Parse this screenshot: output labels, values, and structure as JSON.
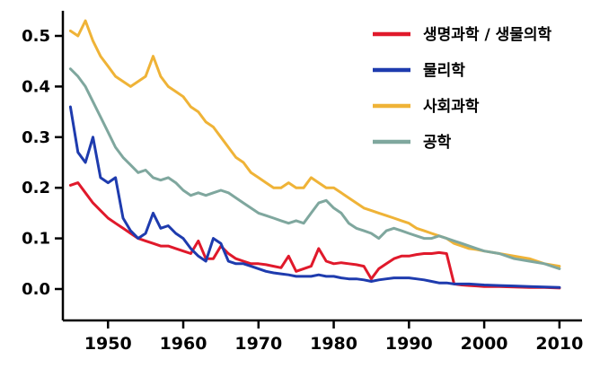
{
  "chart_data": {
    "type": "line",
    "title": "",
    "xlabel": "",
    "ylabel": "",
    "xlim": [
      1944,
      2013
    ],
    "ylim": [
      -0.06,
      0.55
    ],
    "xticks": [
      1950,
      1960,
      1970,
      1980,
      1990,
      2000,
      2010
    ],
    "yticks": [
      "0.0",
      "0.1",
      "0.2",
      "0.3",
      "0.4",
      "0.5"
    ],
    "ytick_values": [
      0.0,
      0.1,
      0.2,
      0.3,
      0.4,
      0.5
    ],
    "grid": false,
    "legend_position": "upper-right",
    "axis_color": "#000000",
    "background_color": "#ffffff",
    "series": [
      {
        "name": "생명과학 / 생물의학",
        "color": "#e0192b",
        "points": [
          [
            1945,
            0.205
          ],
          [
            1946,
            0.21
          ],
          [
            1947,
            0.19
          ],
          [
            1948,
            0.17
          ],
          [
            1949,
            0.155
          ],
          [
            1950,
            0.14
          ],
          [
            1951,
            0.13
          ],
          [
            1952,
            0.12
          ],
          [
            1953,
            0.11
          ],
          [
            1954,
            0.1
          ],
          [
            1955,
            0.095
          ],
          [
            1956,
            0.09
          ],
          [
            1957,
            0.085
          ],
          [
            1958,
            0.085
          ],
          [
            1959,
            0.08
          ],
          [
            1960,
            0.075
          ],
          [
            1961,
            0.07
          ],
          [
            1962,
            0.095
          ],
          [
            1963,
            0.06
          ],
          [
            1964,
            0.06
          ],
          [
            1965,
            0.085
          ],
          [
            1966,
            0.07
          ],
          [
            1967,
            0.06
          ],
          [
            1968,
            0.055
          ],
          [
            1969,
            0.05
          ],
          [
            1970,
            0.05
          ],
          [
            1971,
            0.048
          ],
          [
            1972,
            0.045
          ],
          [
            1973,
            0.042
          ],
          [
            1974,
            0.065
          ],
          [
            1975,
            0.035
          ],
          [
            1976,
            0.04
          ],
          [
            1977,
            0.045
          ],
          [
            1978,
            0.08
          ],
          [
            1979,
            0.055
          ],
          [
            1980,
            0.05
          ],
          [
            1981,
            0.052
          ],
          [
            1982,
            0.05
          ],
          [
            1983,
            0.048
          ],
          [
            1984,
            0.045
          ],
          [
            1985,
            0.02
          ],
          [
            1986,
            0.04
          ],
          [
            1987,
            0.05
          ],
          [
            1988,
            0.06
          ],
          [
            1989,
            0.065
          ],
          [
            1990,
            0.065
          ],
          [
            1991,
            0.068
          ],
          [
            1992,
            0.07
          ],
          [
            1993,
            0.07
          ],
          [
            1994,
            0.072
          ],
          [
            1995,
            0.07
          ],
          [
            1996,
            0.01
          ],
          [
            1997,
            0.008
          ],
          [
            1998,
            0.007
          ],
          [
            1999,
            0.006
          ],
          [
            2000,
            0.005
          ],
          [
            2002,
            0.005
          ],
          [
            2004,
            0.004
          ],
          [
            2006,
            0.003
          ],
          [
            2008,
            0.003
          ],
          [
            2010,
            0.002
          ]
        ]
      },
      {
        "name": "물리학",
        "color": "#1e3bae",
        "points": [
          [
            1945,
            0.36
          ],
          [
            1946,
            0.27
          ],
          [
            1947,
            0.25
          ],
          [
            1948,
            0.3
          ],
          [
            1949,
            0.22
          ],
          [
            1950,
            0.21
          ],
          [
            1951,
            0.22
          ],
          [
            1952,
            0.14
          ],
          [
            1953,
            0.115
          ],
          [
            1954,
            0.1
          ],
          [
            1955,
            0.11
          ],
          [
            1956,
            0.15
          ],
          [
            1957,
            0.12
          ],
          [
            1958,
            0.125
          ],
          [
            1959,
            0.11
          ],
          [
            1960,
            0.1
          ],
          [
            1961,
            0.08
          ],
          [
            1962,
            0.065
          ],
          [
            1963,
            0.055
          ],
          [
            1964,
            0.1
          ],
          [
            1965,
            0.09
          ],
          [
            1966,
            0.055
          ],
          [
            1967,
            0.05
          ],
          [
            1968,
            0.05
          ],
          [
            1969,
            0.045
          ],
          [
            1970,
            0.04
          ],
          [
            1971,
            0.035
          ],
          [
            1972,
            0.032
          ],
          [
            1973,
            0.03
          ],
          [
            1974,
            0.028
          ],
          [
            1975,
            0.025
          ],
          [
            1976,
            0.025
          ],
          [
            1977,
            0.025
          ],
          [
            1978,
            0.028
          ],
          [
            1979,
            0.025
          ],
          [
            1980,
            0.025
          ],
          [
            1981,
            0.022
          ],
          [
            1982,
            0.02
          ],
          [
            1983,
            0.02
          ],
          [
            1984,
            0.018
          ],
          [
            1985,
            0.015
          ],
          [
            1986,
            0.018
          ],
          [
            1987,
            0.02
          ],
          [
            1988,
            0.022
          ],
          [
            1989,
            0.022
          ],
          [
            1990,
            0.022
          ],
          [
            1991,
            0.02
          ],
          [
            1992,
            0.018
          ],
          [
            1993,
            0.015
          ],
          [
            1994,
            0.012
          ],
          [
            1995,
            0.012
          ],
          [
            1996,
            0.01
          ],
          [
            1998,
            0.01
          ],
          [
            2000,
            0.008
          ],
          [
            2002,
            0.007
          ],
          [
            2004,
            0.006
          ],
          [
            2006,
            0.005
          ],
          [
            2008,
            0.004
          ],
          [
            2010,
            0.003
          ]
        ]
      },
      {
        "name": "사회과학",
        "color": "#efb washed",
        "points": []
      },
      {
        "name": "공학",
        "color": "#7fa79e",
        "points": []
      }
    ]
  }
}
